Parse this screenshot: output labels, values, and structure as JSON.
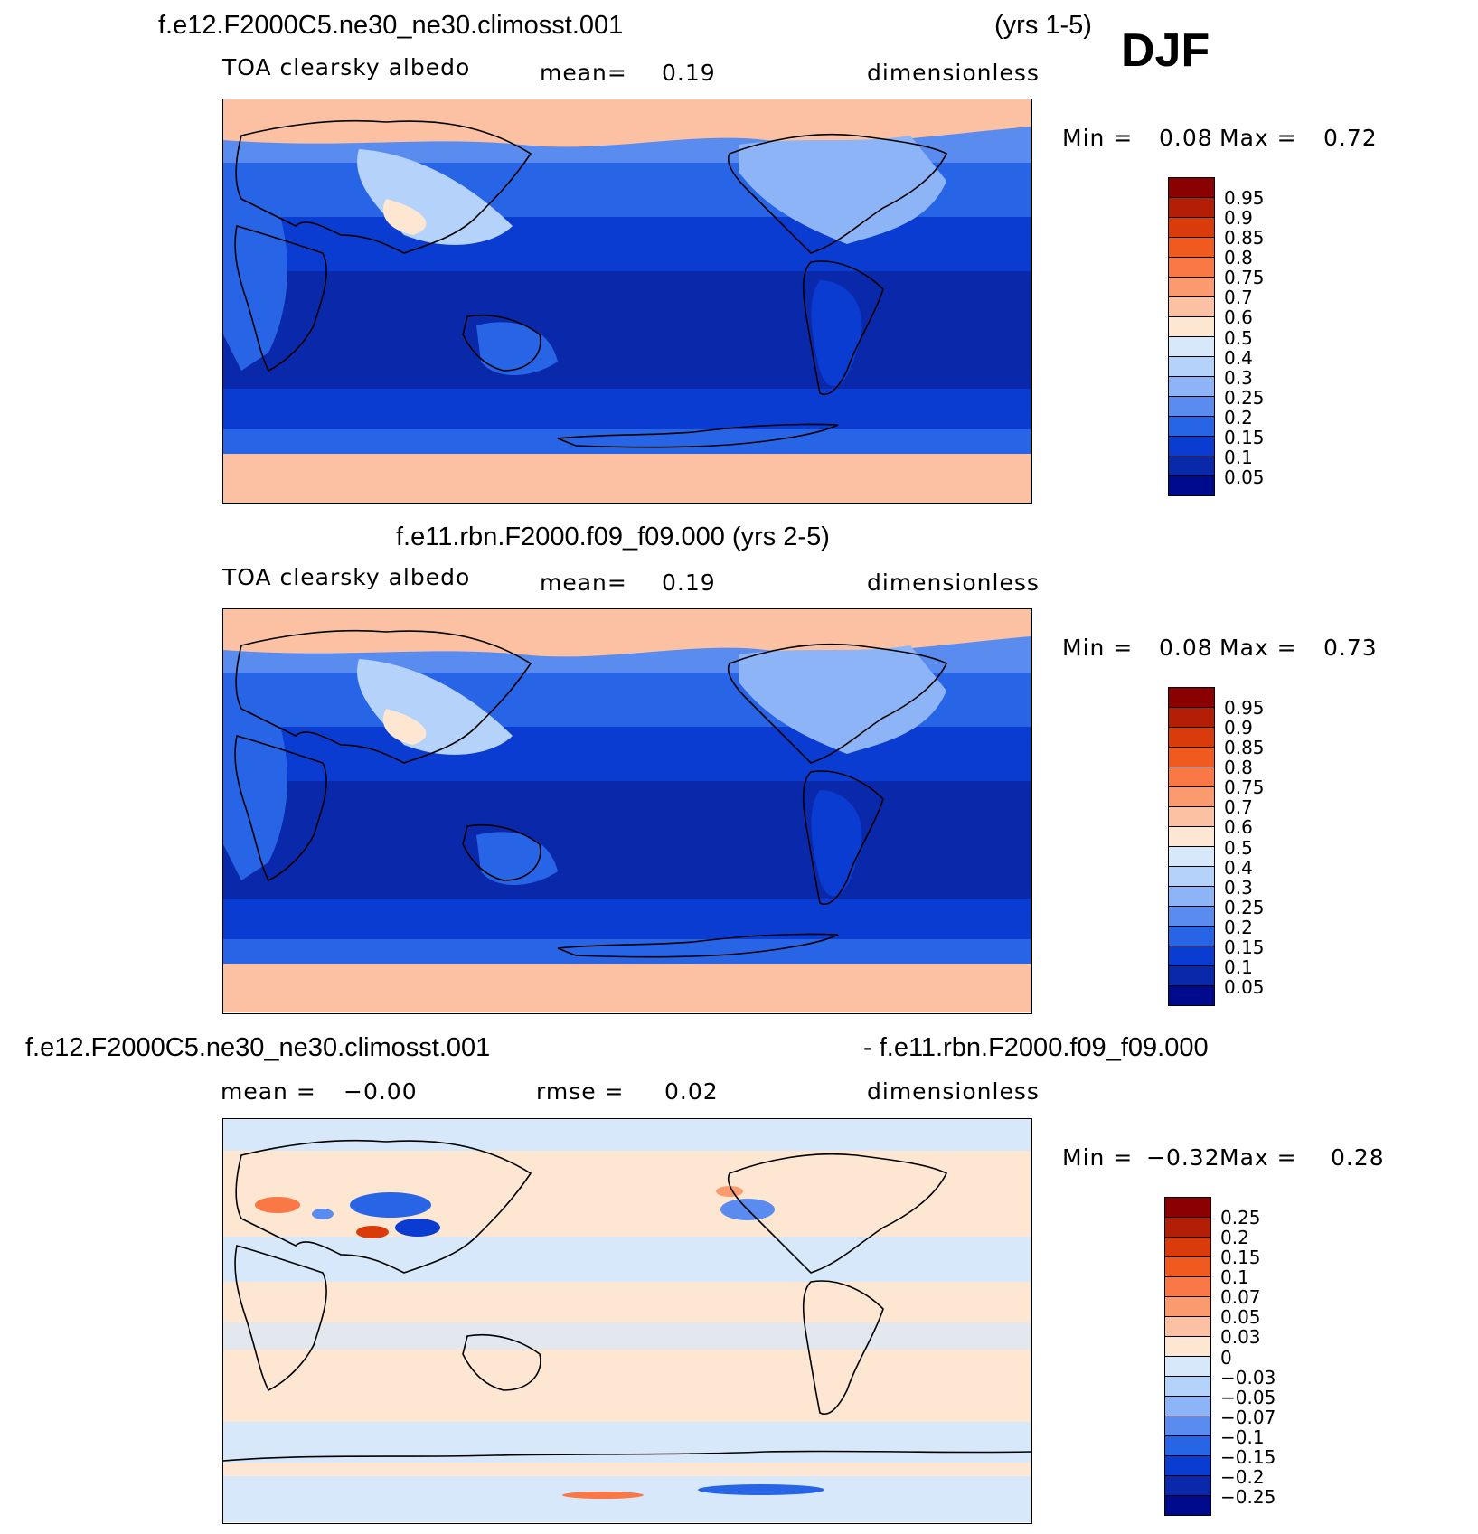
{
  "season": "DJF",
  "panels": [
    {
      "title_left": "f.e12.F2000C5.ne30_ne30.climosst.001",
      "title_right": "(yrs 1-5)",
      "variable": "TOA clearsky albedo",
      "stat_label": "mean=",
      "stat_value": "0.19",
      "units": "dimensionless",
      "min_label": "Min =",
      "min_value": "0.08",
      "max_label": "Max =",
      "max_value": "0.72"
    },
    {
      "title": "f.e11.rbn.F2000.f09_f09.000 (yrs 2-5)",
      "variable": "TOA clearsky albedo",
      "stat_label": "mean=",
      "stat_value": "0.19",
      "units": "dimensionless",
      "min_label": "Min =",
      "min_value": "0.08",
      "max_label": "Max =",
      "max_value": "0.73"
    },
    {
      "title_left": "f.e12.F2000C5.ne30_ne30.climosst.001",
      "title_right": "- f.e11.rbn.F2000.f09_f09.000",
      "mean_label": "mean =",
      "mean_value": "−0.00",
      "rmse_label": "rmse =",
      "rmse_value": "0.02",
      "units": "dimensionless",
      "min_label": "Min =",
      "min_value": "−0.32",
      "max_label": "Max =",
      "max_value": "0.28"
    }
  ],
  "colorbar_abs": {
    "labels": [
      "0.95",
      "0.9",
      "0.85",
      "0.8",
      "0.75",
      "0.7",
      "0.6",
      "0.5",
      "0.4",
      "0.3",
      "0.25",
      "0.2",
      "0.15",
      "0.1",
      "0.05"
    ],
    "colors": [
      "#8b0000",
      "#b21e06",
      "#d93c0a",
      "#f05a1e",
      "#fa7846",
      "#fb9a6e",
      "#fcc1a3",
      "#fde6d2",
      "#d6e8fa",
      "#b4d2fa",
      "#8cb4f7",
      "#5a8cf0",
      "#2864e6",
      "#0a3cd2",
      "#0a28aa",
      "#000a8c"
    ]
  },
  "colorbar_diff": {
    "labels": [
      "0.25",
      "0.2",
      "0.15",
      "0.1",
      "0.07",
      "0.05",
      "0.03",
      "0",
      "−0.03",
      "−0.05",
      "−0.07",
      "−0.1",
      "−0.15",
      "−0.2",
      "−0.25"
    ],
    "colors": [
      "#8b0000",
      "#b21e06",
      "#d93c0a",
      "#f05a1e",
      "#fa7846",
      "#fb9a6e",
      "#fcc1a3",
      "#fde6d2",
      "#d6e8fa",
      "#b4d2fa",
      "#8cb4f7",
      "#5a8cf0",
      "#2864e6",
      "#0a3cd2",
      "#0a28aa",
      "#000a8c"
    ]
  }
}
